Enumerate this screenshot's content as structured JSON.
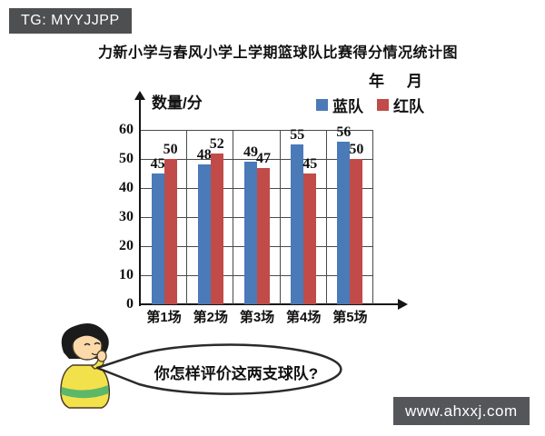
{
  "watermark_top": {
    "text": "TG: MYYJJPP"
  },
  "watermark_bottom": {
    "text": "www.ahxxj.com"
  },
  "header": {
    "title": "力新小学与春风小学上学期篮球队比赛得分情况统计图",
    "year_label": "年",
    "month_label": "月"
  },
  "chart_data": {
    "type": "bar",
    "title": "力新小学与春风小学上学期篮球队比赛得分情况统计图",
    "xlabel": "",
    "ylabel": "数量/分",
    "categories": [
      "第1场",
      "第2场",
      "第3场",
      "第4场",
      "第5场"
    ],
    "series": [
      {
        "name": "蓝队",
        "color": "#4a7ab8",
        "values": [
          45,
          48,
          49,
          55,
          56
        ]
      },
      {
        "name": "红队",
        "color": "#c04b48",
        "values": [
          50,
          52,
          47,
          45,
          50
        ]
      }
    ],
    "ylim": [
      0,
      60
    ],
    "yticks": [
      0,
      10,
      20,
      30,
      40,
      50,
      60
    ],
    "grid": true,
    "value_labels": true,
    "legend_position": "top-right"
  },
  "speech_bubble": {
    "text": "你怎样评价这两支球队?"
  },
  "colors": {
    "bar_blue": "#4a7ab8",
    "bar_red": "#c04b48",
    "watermark_bg": "#4e4f51",
    "axis": "#151515",
    "grid": "#4a4a4a"
  }
}
